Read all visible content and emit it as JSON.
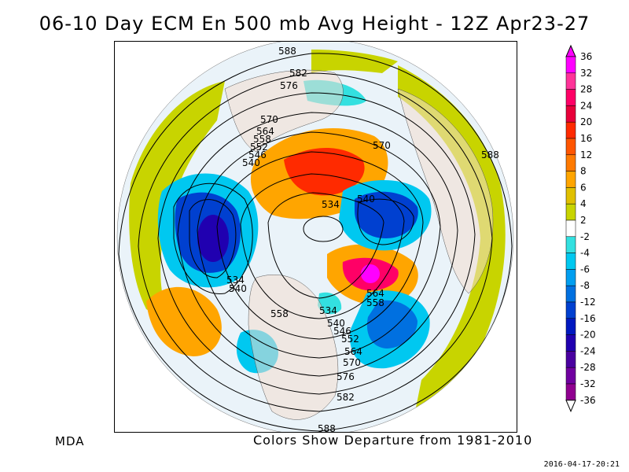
{
  "title": "06-10 Day ECM En 500 mb Avg Height - 12Z Apr23-27",
  "footer": {
    "source": "MDA",
    "caption": "Colors Show Departure from 1981-2010",
    "timestamp": "2016-04-17-20:21"
  },
  "legend": {
    "labels": [
      "36",
      "32",
      "28",
      "24",
      "20",
      "16",
      "12",
      "8",
      "6",
      "4",
      "2",
      "-2",
      "-4",
      "-6",
      "-8",
      "-12",
      "-16",
      "-20",
      "-24",
      "-28",
      "-32",
      "-36"
    ],
    "colors": [
      "#ff00ff",
      "#ff3399",
      "#ff0066",
      "#e8003a",
      "#ff2a00",
      "#ff5500",
      "#ff7a00",
      "#ffa500",
      "#e0c000",
      "#c8d400",
      "#ffffff",
      "#33e0e0",
      "#00c8f0",
      "#009ef0",
      "#0070e0",
      "#0040d0",
      "#0018c0",
      "#2000b0",
      "#4a00a0",
      "#7000a0",
      "#900090"
    ]
  },
  "contours": [
    {
      "label": "588"
    },
    {
      "label": "582"
    },
    {
      "label": "576"
    },
    {
      "label": "570"
    },
    {
      "label": "564"
    },
    {
      "label": "558"
    },
    {
      "label": "552"
    },
    {
      "label": "546"
    },
    {
      "label": "540"
    },
    {
      "label": "534"
    },
    {
      "label": "540"
    },
    {
      "label": "570"
    },
    {
      "label": "588"
    },
    {
      "label": "534"
    },
    {
      "label": "540"
    },
    {
      "label": "564"
    },
    {
      "label": "558"
    },
    {
      "label": "558"
    },
    {
      "label": "534"
    },
    {
      "label": "540"
    },
    {
      "label": "546"
    },
    {
      "label": "552"
    },
    {
      "label": "564"
    },
    {
      "label": "570"
    },
    {
      "label": "576"
    },
    {
      "label": "582"
    },
    {
      "label": "588"
    }
  ]
}
